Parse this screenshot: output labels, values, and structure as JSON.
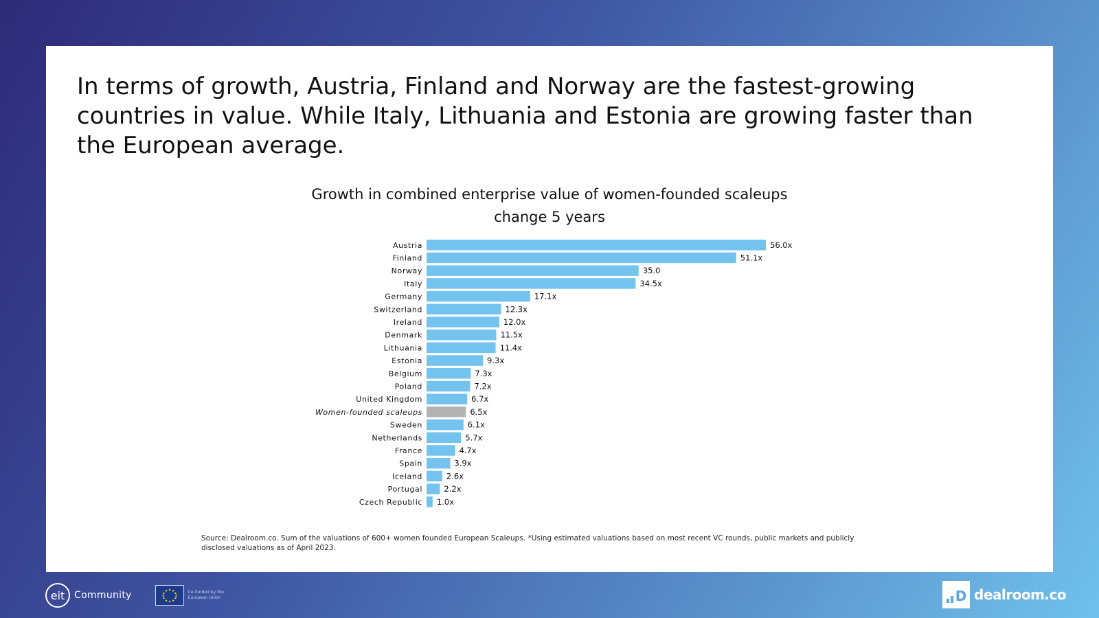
{
  "headline": "In terms of growth, Austria, Finland and Norway are the fastest-growing countries in value. While Italy, Lithuania and Estonia are growing faster than the European average.",
  "source": "Source: Dealroom.co. Sum of the valuations of 600+ women founded European Scaleups. *Using estimated valuations based on most recent VC rounds, public markets and publicly disclosed valuations as of April 2023.",
  "footer": {
    "eit_mark": "eit",
    "eit_label": "Community",
    "eu_text": "Co-funded by the European Union",
    "brand": "dealroom.co"
  },
  "colors": {
    "bar": "#74c3ee",
    "highlight_bar": "#b3b3b3"
  },
  "chart_data": {
    "type": "bar",
    "orientation": "horizontal",
    "title": "Growth in combined enterprise value of women-founded scaleups",
    "subtitle": "change 5 years",
    "xlim": [
      0,
      60
    ],
    "grid": false,
    "categories": [
      "Austria",
      "Finland",
      "Norway",
      "Italy",
      "Germany",
      "Switzerland",
      "Ireland",
      "Denmark",
      "Lithuania",
      "Estonia",
      "Belgium",
      "Poland",
      "United Kingdom",
      "Women-founded scaleups",
      "Sweden",
      "Netherlands",
      "France",
      "Spain",
      "Iceland",
      "Portugal",
      "Czech Republic"
    ],
    "values": [
      56.0,
      51.1,
      35.0,
      34.5,
      17.1,
      12.3,
      12.0,
      11.5,
      11.4,
      9.3,
      7.3,
      7.2,
      6.7,
      6.5,
      6.1,
      5.7,
      4.7,
      3.9,
      2.6,
      2.2,
      1.0
    ],
    "data_labels": [
      "56.0x",
      "51.1x",
      "35.0",
      "34.5x",
      "17.1x",
      "12.3x",
      "12.0x",
      "11.5x",
      "11.4x",
      "9.3x",
      "7.3x",
      "7.2x",
      "6.7x",
      "6.5x",
      "6.1x",
      "5.7x",
      "4.7x",
      "3.9x",
      "2.6x",
      "2.2x",
      "1.0x"
    ],
    "highlight": "Women-founded scaleups"
  }
}
